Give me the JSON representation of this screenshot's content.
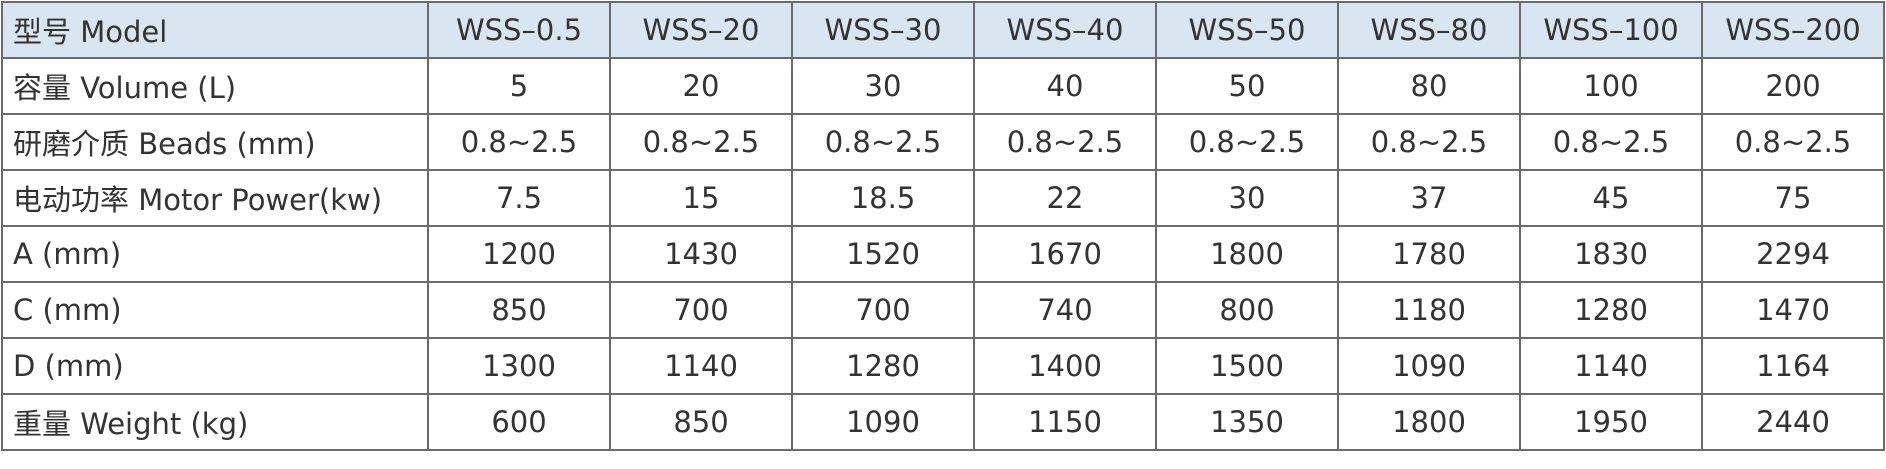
{
  "table": {
    "header": [
      "型号 Model",
      "WSS–0.5",
      "WSS–20",
      "WSS–30",
      "WSS–40",
      "WSS–50",
      "WSS–80",
      "WSS–100",
      "WSS–200"
    ],
    "rows": [
      [
        "容量 Volume (L)",
        "5",
        "20",
        "30",
        "40",
        "50",
        "80",
        "100",
        "200"
      ],
      [
        "研磨介质 Beads (mm)",
        "0.8~2.5",
        "0.8~2.5",
        "0.8~2.5",
        "0.8~2.5",
        "0.8~2.5",
        "0.8~2.5",
        "0.8~2.5",
        "0.8~2.5"
      ],
      [
        "电动功率 Motor Power(kw)",
        "7.5",
        "15",
        "18.5",
        "22",
        "30",
        "37",
        "45",
        "75"
      ],
      [
        "A (mm)",
        "1200",
        "1430",
        "1520",
        "1670",
        "1800",
        "1780",
        "1830",
        "2294"
      ],
      [
        "C (mm)",
        "850",
        "700",
        "700",
        "740",
        "800",
        "1180",
        "1280",
        "1470"
      ],
      [
        "D (mm)",
        "1300",
        "1140",
        "1280",
        "1400",
        "1500",
        "1090",
        "1140",
        "1164"
      ],
      [
        "重量 Weight (kg)",
        "600",
        "850",
        "1090",
        "1150",
        "1350",
        "1800",
        "1950",
        "2440"
      ]
    ]
  }
}
